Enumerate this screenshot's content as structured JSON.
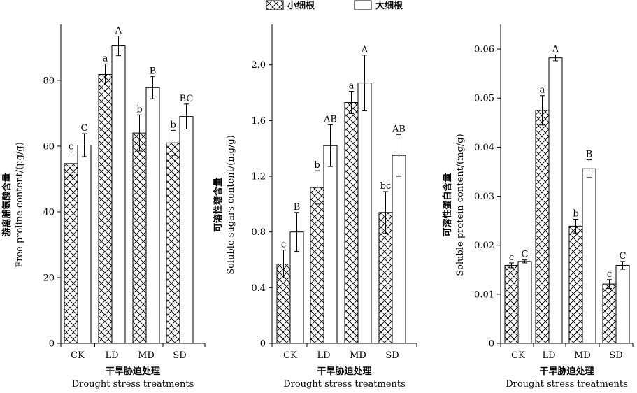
{
  "legend": [
    {
      "label": "小细根",
      "pattern": "crosshatch"
    },
    {
      "label": "大细根",
      "pattern": "open"
    }
  ],
  "chart_data": [
    {
      "type": "bar",
      "categories": [
        "CK",
        "LD",
        "MD",
        "SD"
      ],
      "ylabel_cn": "游离脯氨酸含量",
      "ylabel_en": "Free proline content/(μg/g)",
      "xlabel_cn": "干旱胁迫处理",
      "xlabel_en": "Drought stress treatments",
      "ylim": [
        0,
        97
      ],
      "yticks": [
        0,
        20,
        40,
        60,
        80
      ],
      "ytick_labels": [
        "0",
        "20",
        "40",
        "60",
        "80"
      ],
      "series": [
        {
          "name": "小细根",
          "values": [
            54.7,
            81.8,
            64.0,
            61.0
          ],
          "errors": [
            3.5,
            3.2,
            5.5,
            3.8
          ],
          "letters": [
            "c",
            "a",
            "b",
            "b"
          ]
        },
        {
          "name": "大细根",
          "values": [
            60.3,
            90.5,
            77.8,
            69.0
          ],
          "errors": [
            3.5,
            3.0,
            3.4,
            3.8
          ],
          "letters": [
            "C",
            "A",
            "B",
            "BC"
          ]
        }
      ]
    },
    {
      "type": "bar",
      "categories": [
        "CK",
        "LD",
        "MD",
        "SD"
      ],
      "ylabel_cn": "可溶性糖含量",
      "ylabel_en": "Soluble sugars content/(mg/g)",
      "xlabel_cn": "干旱胁迫处理",
      "xlabel_en": "Drought stress treatments",
      "ylim": [
        0,
        2.29
      ],
      "yticks": [
        0,
        0.4,
        0.8,
        1.2,
        1.6,
        2.0
      ],
      "ytick_labels": [
        "0",
        "0.4",
        "0.8",
        "1.2",
        "1.6",
        "2.0"
      ],
      "series": [
        {
          "name": "小细根",
          "values": [
            0.57,
            1.12,
            1.73,
            0.94
          ],
          "errors": [
            0.1,
            0.12,
            0.08,
            0.15
          ],
          "letters": [
            "c",
            "b",
            "a",
            "bc"
          ]
        },
        {
          "name": "大细根",
          "values": [
            0.8,
            1.42,
            1.87,
            1.35
          ],
          "errors": [
            0.14,
            0.15,
            0.2,
            0.15
          ],
          "letters": [
            "B",
            "AB",
            "A",
            "AB"
          ]
        }
      ]
    },
    {
      "type": "bar",
      "categories": [
        "CK",
        "LD",
        "MD",
        "SD"
      ],
      "ylabel_cn": "可溶性蛋白含量",
      "ylabel_en": "Soluble protein content/(mg/g)",
      "xlabel_cn": "干旱胁迫处理",
      "xlabel_en": "Drought stress treatments",
      "ylim": [
        0,
        0.065
      ],
      "yticks": [
        0,
        0.01,
        0.02,
        0.03,
        0.04,
        0.05,
        0.06
      ],
      "ytick_labels": [
        "0",
        "0.01",
        "0.02",
        "0.03",
        "0.04",
        "0.05",
        "0.06"
      ],
      "series": [
        {
          "name": "小细根",
          "values": [
            0.0159,
            0.0475,
            0.0239,
            0.0121
          ],
          "errors": [
            0.0005,
            0.003,
            0.0014,
            0.0009
          ],
          "letters": [
            "c",
            "a",
            "b",
            "c"
          ]
        },
        {
          "name": "大细根",
          "values": [
            0.0167,
            0.0582,
            0.0356,
            0.0159
          ],
          "errors": [
            0.0003,
            0.0006,
            0.0018,
            0.0008
          ],
          "letters": [
            "C",
            "A",
            "B",
            "C"
          ]
        }
      ]
    }
  ]
}
